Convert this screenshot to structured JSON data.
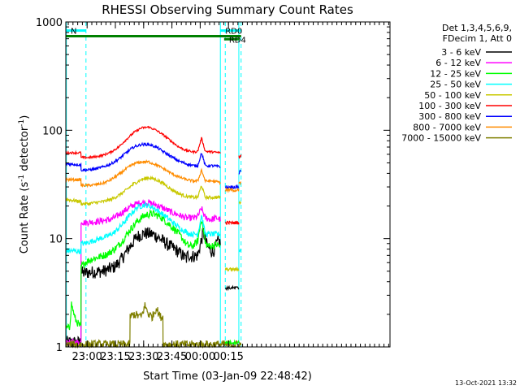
{
  "chart_data": {
    "type": "line",
    "title": "RHESSI Observing Summary Count Rates",
    "xlabel": "Start Time (03-Jan-09 22:48:42)",
    "ylabel": "Count Rate (s⁻¹ detector⁻¹)",
    "ylabel_parts": {
      "main": "Count Rate (s",
      "sup1": "-1",
      "mid": " detector",
      "sup2": "-1",
      "end": ")"
    },
    "yscale": "log",
    "ylim": [
      1,
      1000
    ],
    "xlim": [
      0,
      172
    ],
    "x_unit": "minutes after 22:48:42",
    "ytick_labels": [
      "1",
      "10",
      "100",
      "1000"
    ],
    "xticks": [
      {
        "label": "23:00",
        "x": 11.3
      },
      {
        "label": "23:15",
        "x": 26.3
      },
      {
        "label": "23:30",
        "x": 41.3
      },
      {
        "label": "23:45",
        "x": 56.3
      },
      {
        "label": "00:00",
        "x": 71.3
      },
      {
        "label": "00:15",
        "x": 86.3
      }
    ],
    "legend_header": [
      "Det 1,3,4,5,6,9,",
      "FDecim 1, Att 0"
    ],
    "footer_date": "13-Oct-2021 13:32",
    "colors": {
      "black": "#000000",
      "magenta": "#ff00ff",
      "green": "#00ff00",
      "cyan": "#00ffff",
      "yellow": "#c8c800",
      "red": "#ff0000",
      "blue": "#0000ff",
      "orange": "#ff8c00",
      "olive": "#7f7f00",
      "dkgreen": "#008000"
    },
    "flags": [
      {
        "label": "N",
        "start": 0,
        "end": 10.7,
        "level": 0.93,
        "color": "#00ffff"
      },
      {
        "label": "RD0",
        "start": 82,
        "end": 93,
        "level": 0.93,
        "color": "#00ffff"
      },
      {
        "label": "",
        "start": 0,
        "end": 93,
        "level": 0.885,
        "color": "#008000"
      },
      {
        "label": "RD4",
        "start": 84,
        "end": 92,
        "level": 0.86,
        "color": "#008000"
      }
    ],
    "vlines": [
      {
        "x": 0.3,
        "style": "solid",
        "color": "#00ffff"
      },
      {
        "x": 10.7,
        "style": "dashed",
        "color": "#00ffff"
      },
      {
        "x": 82.0,
        "style": "solid",
        "color": "#00ffff"
      },
      {
        "x": 84.6,
        "style": "dashed",
        "color": "#00ffff"
      },
      {
        "x": 91.8,
        "style": "solid",
        "color": "#00ffff"
      },
      {
        "x": 93.0,
        "style": "dashed",
        "color": "#00ffff"
      }
    ],
    "series": [
      {
        "name": "3 - 6 keV",
        "color": "#000000",
        "x": [
          0,
          8,
          8.1,
          9,
          14,
          20,
          26,
          30,
          34,
          38,
          42,
          46,
          50,
          54,
          58,
          62,
          64,
          65,
          66,
          70,
          73,
          75,
          78,
          81,
          82
        ],
        "y": [
          1.1,
          1.1,
          5.0,
          4.8,
          4.9,
          5.0,
          5.5,
          6.6,
          8.5,
          10.5,
          11.2,
          11.0,
          10.0,
          8.8,
          8.0,
          7.0,
          6.5,
          7.3,
          6.8,
          7.0,
          11.5,
          8.5,
          7.5,
          9.5,
          9.0
        ]
      },
      {
        "name": "6 - 12 keV",
        "color": "#ff00ff",
        "x": [
          0,
          8,
          8.1,
          10,
          14,
          18,
          24,
          28,
          32,
          36,
          40,
          44,
          48,
          52,
          56,
          60,
          64,
          66,
          68,
          70,
          72,
          74,
          77,
          80,
          82
        ],
        "y": [
          1.1,
          1.1,
          14.5,
          14.0,
          14.2,
          14.5,
          15.0,
          16.5,
          18.5,
          20.5,
          21.5,
          21.5,
          20.5,
          19.0,
          17.5,
          16.5,
          15.5,
          15.5,
          15.5,
          16.0,
          19.0,
          15.5,
          15.0,
          15.5,
          15.0
        ]
      },
      {
        "name": "12 - 25 keV",
        "color": "#00ff00",
        "x": [
          0,
          2,
          3,
          5,
          8,
          8.1,
          10,
          14,
          18,
          22,
          26,
          30,
          34,
          38,
          42,
          46,
          50,
          54,
          58,
          62,
          64,
          66,
          68,
          70,
          72,
          74,
          76,
          80,
          82
        ],
        "y": [
          1.5,
          1.5,
          2.5,
          1.8,
          1.5,
          5.5,
          6.0,
          6.5,
          6.8,
          7.2,
          8.0,
          9.5,
          12.0,
          14.5,
          16.5,
          17.0,
          16.0,
          14.0,
          12.0,
          10.0,
          8.8,
          8.5,
          8.7,
          9.5,
          15.5,
          9.0,
          8.5,
          8.8,
          8.5
        ]
      },
      {
        "name": "25 - 50 keV",
        "color": "#00ffff",
        "x": [
          0,
          8,
          8.1,
          10,
          14,
          18,
          22,
          26,
          30,
          34,
          38,
          42,
          46,
          50,
          54,
          58,
          62,
          66,
          70,
          72,
          74,
          77,
          82
        ],
        "y": [
          7.8,
          7.6,
          9.0,
          9.0,
          9.5,
          10.0,
          10.5,
          11.5,
          13.5,
          16.5,
          19.5,
          20.5,
          19.5,
          17.5,
          15.5,
          13.5,
          12.0,
          11.0,
          11.0,
          16.5,
          11.0,
          11.0,
          11.0
        ]
      },
      {
        "name": "50 - 100 keV",
        "color": "#c8c800",
        "x": [
          0,
          8,
          8.1,
          12,
          16,
          20,
          24,
          28,
          32,
          36,
          40,
          44,
          48,
          52,
          56,
          60,
          64,
          68,
          70,
          72,
          74,
          78,
          82
        ],
        "y": [
          23,
          22,
          21,
          21,
          21.5,
          22,
          23,
          25,
          28,
          32,
          35,
          36.5,
          35,
          32,
          28.5,
          26,
          24.5,
          24,
          24,
          31,
          24,
          24,
          24
        ]
      },
      {
        "name": "100 - 300 keV",
        "color": "#ff0000",
        "x": [
          0,
          8,
          8.1,
          12,
          16,
          20,
          24,
          28,
          32,
          36,
          40,
          44,
          48,
          52,
          56,
          60,
          64,
          68,
          70,
          72,
          74,
          78,
          82
        ],
        "y": [
          62,
          62,
          56,
          56,
          57,
          59,
          63,
          70,
          82,
          95,
          105,
          107,
          100,
          90,
          79,
          70,
          65,
          63,
          64,
          85,
          64,
          63,
          62
        ]
      },
      {
        "name": "300 - 800 keV",
        "color": "#0000ff",
        "x": [
          0,
          8,
          8.1,
          12,
          16,
          20,
          24,
          28,
          32,
          36,
          40,
          44,
          48,
          52,
          56,
          60,
          64,
          68,
          70,
          72,
          74,
          78,
          82
        ],
        "y": [
          49,
          48,
          43,
          43,
          44,
          46,
          49,
          54,
          62,
          70,
          74,
          74,
          70,
          63,
          57,
          52,
          49,
          47,
          47,
          62,
          47,
          47,
          46
        ]
      },
      {
        "name": "800 - 7000 keV",
        "color": "#ff8c00",
        "x": [
          0,
          8,
          8.1,
          12,
          16,
          20,
          24,
          28,
          32,
          36,
          40,
          44,
          48,
          52,
          56,
          60,
          64,
          68,
          70,
          72,
          74,
          78,
          82
        ],
        "y": [
          35,
          35,
          31,
          31,
          31.5,
          32.5,
          35,
          39,
          44,
          49,
          51,
          51,
          48,
          44,
          40,
          37,
          35,
          34,
          34,
          43,
          34,
          34,
          33
        ]
      },
      {
        "name": "7000 - 15000 keV",
        "color": "#7f7f00",
        "x": [
          0,
          34,
          34.1,
          36,
          40,
          42,
          44,
          46,
          48,
          50,
          51.5,
          51.6,
          93
        ],
        "y": [
          1.05,
          1.05,
          1.9,
          2.0,
          1.9,
          2.4,
          2.0,
          1.9,
          2.3,
          1.9,
          1.9,
          1.05,
          1.05
        ]
      }
    ],
    "post_gap": [
      {
        "series": "100 - 300 keV",
        "x": [
          84.6,
          91.8
        ],
        "y": [
          14,
          14
        ]
      },
      {
        "series": "100 - 300 keV",
        "x": [
          91.8,
          93
        ],
        "y": [
          57,
          58
        ]
      },
      {
        "series": "300 - 800 keV",
        "x": [
          84.6,
          91.8
        ],
        "y": [
          30,
          30
        ]
      },
      {
        "series": "300 - 800 keV",
        "x": [
          91.8,
          93
        ],
        "y": [
          40,
          43
        ]
      },
      {
        "series": "800 - 7000 keV",
        "x": [
          84.6,
          91.8
        ],
        "y": [
          28,
          28
        ]
      },
      {
        "series": "800 - 7000 keV",
        "x": [
          91.8,
          93
        ],
        "y": [
          32,
          33
        ]
      },
      {
        "series": "50 - 100 keV",
        "x": [
          84.6,
          91.8
        ],
        "y": [
          5.2,
          5.2
        ]
      },
      {
        "series": "50 - 100 keV",
        "x": [
          91.8,
          93
        ],
        "y": [
          21,
          22
        ]
      },
      {
        "series": "25 - 50 keV",
        "x": [
          91.8,
          93
        ],
        "y": [
          7.5,
          8.0
        ]
      },
      {
        "series": "12 - 25 keV",
        "x": [
          84.6,
          91.8
        ],
        "y": [
          1.1,
          1.1
        ]
      },
      {
        "series": "3 - 6 keV",
        "x": [
          84.6,
          91.8
        ],
        "y": [
          3.5,
          3.5
        ]
      }
    ]
  }
}
